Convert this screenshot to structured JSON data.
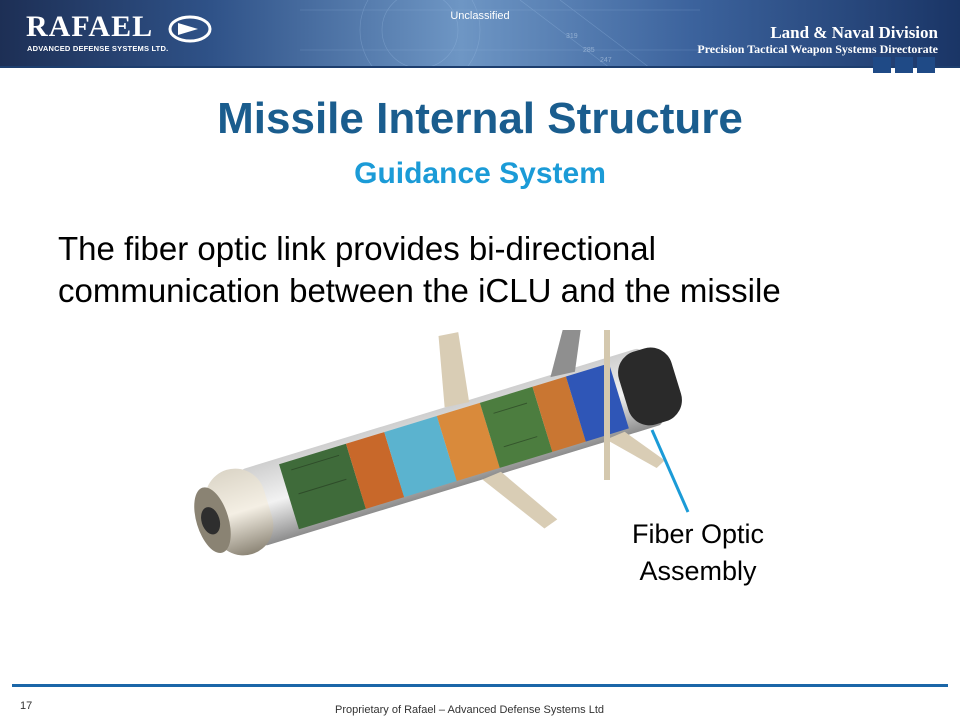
{
  "header": {
    "logo": {
      "name": "RAFAEL",
      "tagline": "ADVANCED DEFENSE SYSTEMS LTD."
    },
    "classification": "Unclassified",
    "division": "Land & Naval Division",
    "directorate": "Precision Tactical Weapon Systems Directorate"
  },
  "slide": {
    "title": "Missile Internal Structure",
    "subtitle": "Guidance System",
    "body_lines": [
      "The fiber optic link provides bi-directional",
      "communication between the iCLU and the missile"
    ],
    "callout": {
      "line1": "Fiber Optic",
      "line2": "Assembly"
    }
  },
  "footer": {
    "page_number": "17",
    "text": "Proprietary of Rafael – Advanced Defense Systems Ltd"
  },
  "colors": {
    "title": "#1a5d8e",
    "subtitle": "#1b9bd7",
    "callout_line": "#1b9bd7",
    "footer_rule": "#1b66a8",
    "banner_dark": "#1d2f55",
    "banner_light": "#6e96c4"
  }
}
